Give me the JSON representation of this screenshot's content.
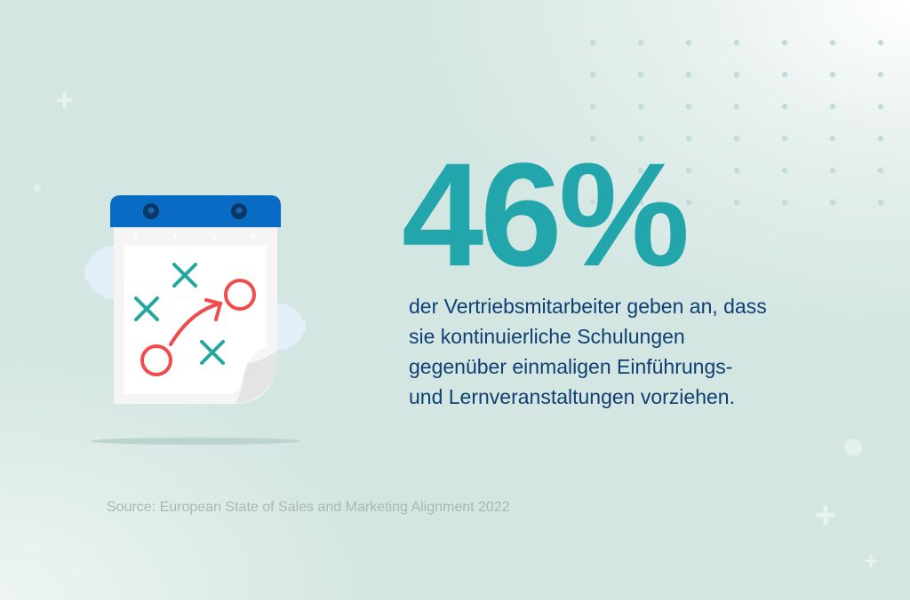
{
  "stat": {
    "value": "46%"
  },
  "description": {
    "lines": [
      "der Vertriebsmitarbeiter geben an, dass",
      "sie kontinuierliche Schulungen",
      "gegenüber einmaligen Einführungs-",
      "und Lernveranstaltungen vorziehen."
    ]
  },
  "source": "Source: European State of Sales and Marketing Alignment 2022",
  "colors": {
    "accent": "#23a6ab",
    "text": "#0f3f73",
    "calendar_header": "#0a6bc4",
    "marker_red": "#f24b4b",
    "marker_teal": "#23a6a0"
  },
  "illustration": {
    "icon": "calendar-play-strategy-icon"
  }
}
